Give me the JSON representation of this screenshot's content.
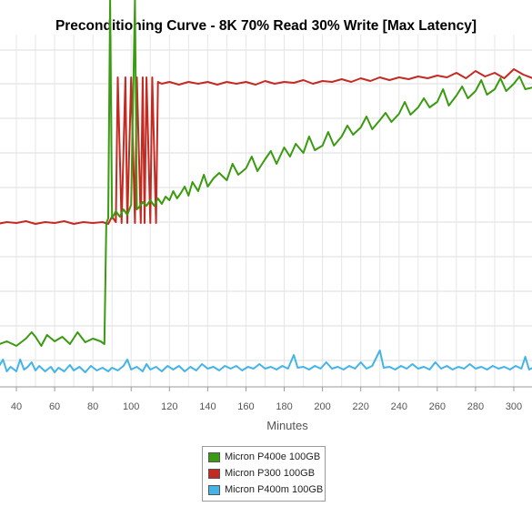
{
  "chart_data": {
    "type": "line",
    "title": "Preconditioning Curve - 8K 70% Read 30% Write [Max Latency]",
    "xlabel": "Minutes",
    "ylabel": "",
    "x_ticks": [
      40,
      60,
      80,
      100,
      120,
      140,
      160,
      180,
      200,
      220,
      240,
      260,
      280,
      300
    ],
    "xlim": [
      25,
      310
    ],
    "grid": true,
    "legend_position": "bottom-center",
    "series": [
      {
        "name": "Micron P400e 100GB",
        "color": "#3a9a10",
        "points": [
          [
            25,
            375
          ],
          [
            30,
            379
          ],
          [
            35,
            375
          ],
          [
            40,
            380
          ],
          [
            45,
            372
          ],
          [
            48,
            365
          ],
          [
            50,
            370
          ],
          [
            53,
            380
          ],
          [
            56,
            368
          ],
          [
            60,
            375
          ],
          [
            64,
            370
          ],
          [
            68,
            378
          ],
          [
            72,
            365
          ],
          [
            76,
            376
          ],
          [
            80,
            372
          ],
          [
            84,
            375
          ],
          [
            86,
            378
          ],
          [
            87,
            245
          ],
          [
            88,
            240
          ],
          [
            89,
            0
          ],
          [
            90,
            240
          ],
          [
            92,
            232
          ],
          [
            94,
            238
          ],
          [
            96,
            230
          ],
          [
            98,
            236
          ],
          [
            100,
            225
          ],
          [
            102,
            0
          ],
          [
            103,
            230
          ],
          [
            104,
            228
          ],
          [
            106,
            222
          ],
          [
            108,
            226
          ],
          [
            110,
            220
          ],
          [
            112,
            226
          ],
          [
            114,
            218
          ],
          [
            116,
            224
          ],
          [
            118,
            216
          ],
          [
            120,
            220
          ],
          [
            122,
            210
          ],
          [
            124,
            218
          ],
          [
            126,
            212
          ],
          [
            128,
            205
          ],
          [
            130,
            215
          ],
          [
            132,
            200
          ],
          [
            135,
            210
          ],
          [
            138,
            192
          ],
          [
            140,
            205
          ],
          [
            143,
            196
          ],
          [
            146,
            190
          ],
          [
            150,
            198
          ],
          [
            153,
            180
          ],
          [
            156,
            192
          ],
          [
            160,
            185
          ],
          [
            163,
            172
          ],
          [
            166,
            188
          ],
          [
            170,
            175
          ],
          [
            173,
            166
          ],
          [
            176,
            180
          ],
          [
            180,
            162
          ],
          [
            183,
            172
          ],
          [
            186,
            158
          ],
          [
            190,
            168
          ],
          [
            193,
            150
          ],
          [
            196,
            165
          ],
          [
            200,
            160
          ],
          [
            203,
            145
          ],
          [
            206,
            160
          ],
          [
            210,
            150
          ],
          [
            213,
            138
          ],
          [
            216,
            148
          ],
          [
            220,
            140
          ],
          [
            223,
            128
          ],
          [
            226,
            142
          ],
          [
            230,
            132
          ],
          [
            233,
            124
          ],
          [
            236,
            134
          ],
          [
            240,
            125
          ],
          [
            243,
            112
          ],
          [
            246,
            126
          ],
          [
            250,
            118
          ],
          [
            253,
            108
          ],
          [
            256,
            118
          ],
          [
            260,
            112
          ],
          [
            263,
            98
          ],
          [
            266,
            116
          ],
          [
            270,
            105
          ],
          [
            273,
            95
          ],
          [
            276,
            108
          ],
          [
            280,
            100
          ],
          [
            283,
            88
          ],
          [
            286,
            104
          ],
          [
            290,
            98
          ],
          [
            293,
            86
          ],
          [
            296,
            100
          ],
          [
            300,
            92
          ],
          [
            303,
            84
          ],
          [
            306,
            98
          ],
          [
            310,
            96
          ]
        ]
      },
      {
        "name": "Micron P300 100GB",
        "color": "#c42a22",
        "points": [
          [
            25,
            243
          ],
          [
            30,
            246
          ],
          [
            35,
            244
          ],
          [
            40,
            245
          ],
          [
            45,
            243
          ],
          [
            50,
            246
          ],
          [
            55,
            244
          ],
          [
            60,
            245
          ],
          [
            65,
            243
          ],
          [
            70,
            246
          ],
          [
            75,
            244
          ],
          [
            80,
            245
          ],
          [
            85,
            244
          ],
          [
            88,
            246
          ],
          [
            90,
            238
          ],
          [
            92,
            244
          ],
          [
            93,
            85
          ],
          [
            95,
            245
          ],
          [
            97,
            85
          ],
          [
            98,
            245
          ],
          [
            100,
            85
          ],
          [
            102,
            245
          ],
          [
            103,
            85
          ],
          [
            105,
            245
          ],
          [
            106,
            85
          ],
          [
            107,
            245
          ],
          [
            108,
            85
          ],
          [
            110,
            245
          ],
          [
            111,
            85
          ],
          [
            113,
            245
          ],
          [
            114,
            90
          ],
          [
            116,
            92
          ],
          [
            120,
            90
          ],
          [
            125,
            93
          ],
          [
            130,
            90
          ],
          [
            135,
            92
          ],
          [
            140,
            90
          ],
          [
            145,
            93
          ],
          [
            150,
            90
          ],
          [
            155,
            92
          ],
          [
            160,
            90
          ],
          [
            165,
            93
          ],
          [
            170,
            89
          ],
          [
            175,
            92
          ],
          [
            180,
            90
          ],
          [
            185,
            91
          ],
          [
            190,
            88
          ],
          [
            195,
            92
          ],
          [
            200,
            89
          ],
          [
            205,
            90
          ],
          [
            210,
            87
          ],
          [
            215,
            90
          ],
          [
            220,
            86
          ],
          [
            225,
            89
          ],
          [
            230,
            85
          ],
          [
            235,
            88
          ],
          [
            240,
            85
          ],
          [
            245,
            87
          ],
          [
            250,
            84
          ],
          [
            255,
            86
          ],
          [
            260,
            83
          ],
          [
            265,
            85
          ],
          [
            270,
            80
          ],
          [
            275,
            86
          ],
          [
            280,
            78
          ],
          [
            285,
            84
          ],
          [
            290,
            80
          ],
          [
            295,
            86
          ],
          [
            300,
            76
          ],
          [
            305,
            82
          ],
          [
            310,
            86
          ]
        ]
      },
      {
        "name": "Micron P400m 100GB",
        "color": "#44b3e8",
        "points": [
          [
            25,
            408
          ],
          [
            27,
            398
          ],
          [
            29,
            410
          ],
          [
            31,
            402
          ],
          [
            33,
            395
          ],
          [
            35,
            408
          ],
          [
            37,
            403
          ],
          [
            40,
            408
          ],
          [
            42,
            395
          ],
          [
            44,
            406
          ],
          [
            46,
            403
          ],
          [
            48,
            398
          ],
          [
            50,
            407
          ],
          [
            52,
            402
          ],
          [
            55,
            408
          ],
          [
            58,
            403
          ],
          [
            60,
            409
          ],
          [
            62,
            404
          ],
          [
            65,
            408
          ],
          [
            68,
            401
          ],
          [
            70,
            407
          ],
          [
            73,
            403
          ],
          [
            76,
            409
          ],
          [
            79,
            402
          ],
          [
            82,
            407
          ],
          [
            85,
            404
          ],
          [
            88,
            408
          ],
          [
            90,
            404
          ],
          [
            93,
            407
          ],
          [
            96,
            402
          ],
          [
            98,
            395
          ],
          [
            100,
            406
          ],
          [
            103,
            403
          ],
          [
            106,
            408
          ],
          [
            108,
            400
          ],
          [
            110,
            406
          ],
          [
            113,
            403
          ],
          [
            116,
            408
          ],
          [
            119,
            402
          ],
          [
            122,
            406
          ],
          [
            125,
            402
          ],
          [
            128,
            408
          ],
          [
            131,
            403
          ],
          [
            134,
            407
          ],
          [
            137,
            400
          ],
          [
            140,
            405
          ],
          [
            143,
            403
          ],
          [
            146,
            407
          ],
          [
            149,
            402
          ],
          [
            152,
            405
          ],
          [
            155,
            402
          ],
          [
            158,
            407
          ],
          [
            161,
            403
          ],
          [
            164,
            405
          ],
          [
            167,
            400
          ],
          [
            170,
            405
          ],
          [
            173,
            403
          ],
          [
            176,
            406
          ],
          [
            179,
            402
          ],
          [
            182,
            405
          ],
          [
            185,
            390
          ],
          [
            187,
            404
          ],
          [
            190,
            403
          ],
          [
            193,
            406
          ],
          [
            196,
            402
          ],
          [
            199,
            405
          ],
          [
            202,
            398
          ],
          [
            205,
            405
          ],
          [
            208,
            403
          ],
          [
            211,
            406
          ],
          [
            214,
            402
          ],
          [
            217,
            405
          ],
          [
            220,
            398
          ],
          [
            223,
            405
          ],
          [
            226,
            402
          ],
          [
            230,
            385
          ],
          [
            232,
            404
          ],
          [
            235,
            403
          ],
          [
            238,
            406
          ],
          [
            241,
            402
          ],
          [
            244,
            405
          ],
          [
            247,
            400
          ],
          [
            250,
            405
          ],
          [
            253,
            403
          ],
          [
            256,
            406
          ],
          [
            259,
            398
          ],
          [
            262,
            405
          ],
          [
            265,
            402
          ],
          [
            268,
            406
          ],
          [
            271,
            403
          ],
          [
            274,
            405
          ],
          [
            277,
            400
          ],
          [
            280,
            405
          ],
          [
            283,
            403
          ],
          [
            286,
            406
          ],
          [
            289,
            402
          ],
          [
            292,
            405
          ],
          [
            295,
            403
          ],
          [
            298,
            406
          ],
          [
            301,
            402
          ],
          [
            304,
            405
          ],
          [
            306,
            392
          ],
          [
            308,
            406
          ],
          [
            310,
            404
          ]
        ]
      }
    ]
  }
}
